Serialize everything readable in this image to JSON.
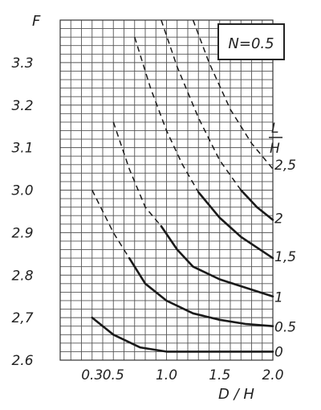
{
  "chart_data": {
    "type": "line",
    "ylabel": "F",
    "xlabel": "D / H",
    "annotation": "N=0.5",
    "legend_title_top": "L",
    "legend_title_bottom": "H",
    "xlim": [
      0.0,
      2.0
    ],
    "ylim": [
      2.6,
      3.4
    ],
    "x_ticks": [
      {
        "value": 0.3,
        "label": "0.3"
      },
      {
        "value": 0.5,
        "label": "0.5"
      },
      {
        "value": 1.0,
        "label": "1.0"
      },
      {
        "value": 1.5,
        "label": "1.5"
      },
      {
        "value": 2.0,
        "label": "2.0"
      }
    ],
    "y_ticks": [
      {
        "value": 2.6,
        "label": "2.6"
      },
      {
        "value": 2.7,
        "label": "2,7"
      },
      {
        "value": 2.8,
        "label": "2.8"
      },
      {
        "value": 2.9,
        "label": "2.9"
      },
      {
        "value": 3.0,
        "label": "3.0"
      },
      {
        "value": 3.1,
        "label": "3.1"
      },
      {
        "value": 3.2,
        "label": "3.2"
      },
      {
        "value": 3.3,
        "label": "3.3"
      }
    ],
    "series": [
      {
        "name": "0",
        "solid": [
          [
            0.3,
            2.7
          ],
          [
            0.5,
            2.66
          ],
          [
            0.75,
            2.63
          ],
          [
            1.0,
            2.62
          ],
          [
            1.5,
            2.62
          ],
          [
            2.0,
            2.62
          ]
        ]
      },
      {
        "name": "0.5",
        "dashed": [
          [
            0.3,
            3.0
          ],
          [
            0.5,
            2.9
          ],
          [
            0.65,
            2.84
          ]
        ],
        "solid": [
          [
            0.65,
            2.84
          ],
          [
            0.8,
            2.78
          ],
          [
            1.0,
            2.74
          ],
          [
            1.25,
            2.71
          ],
          [
            1.5,
            2.695
          ],
          [
            1.75,
            2.685
          ],
          [
            2.0,
            2.68
          ]
        ]
      },
      {
        "name": "1",
        "dashed": [
          [
            0.5,
            3.16
          ],
          [
            0.65,
            3.05
          ],
          [
            0.8,
            2.96
          ],
          [
            0.95,
            2.915
          ]
        ],
        "solid": [
          [
            0.95,
            2.915
          ],
          [
            1.1,
            2.86
          ],
          [
            1.25,
            2.82
          ],
          [
            1.5,
            2.79
          ],
          [
            1.75,
            2.77
          ],
          [
            2.0,
            2.75
          ]
        ]
      },
      {
        "name": "1.5",
        "dashed": [
          [
            0.7,
            3.36
          ],
          [
            0.85,
            3.24
          ],
          [
            1.0,
            3.14
          ],
          [
            1.15,
            3.06
          ],
          [
            1.3,
            2.995
          ]
        ],
        "solid": [
          [
            1.3,
            2.995
          ],
          [
            1.5,
            2.935
          ],
          [
            1.7,
            2.89
          ],
          [
            2.0,
            2.84
          ]
        ]
      },
      {
        "name": "2",
        "dashed": [
          [
            0.95,
            3.4
          ],
          [
            1.1,
            3.29
          ],
          [
            1.3,
            3.17
          ],
          [
            1.5,
            3.07
          ],
          [
            1.7,
            3.0
          ]
        ],
        "solid": [
          [
            1.7,
            3.0
          ],
          [
            1.85,
            2.96
          ],
          [
            2.0,
            2.93
          ]
        ]
      },
      {
        "name": "2.5",
        "dashed": [
          [
            1.25,
            3.4
          ],
          [
            1.4,
            3.3
          ],
          [
            1.6,
            3.19
          ],
          [
            1.8,
            3.11
          ],
          [
            2.0,
            3.05
          ]
        ]
      }
    ],
    "curve_labels": [
      "0",
      "0.5",
      "1",
      "1,5",
      "2",
      "2,5"
    ],
    "grid": true
  }
}
